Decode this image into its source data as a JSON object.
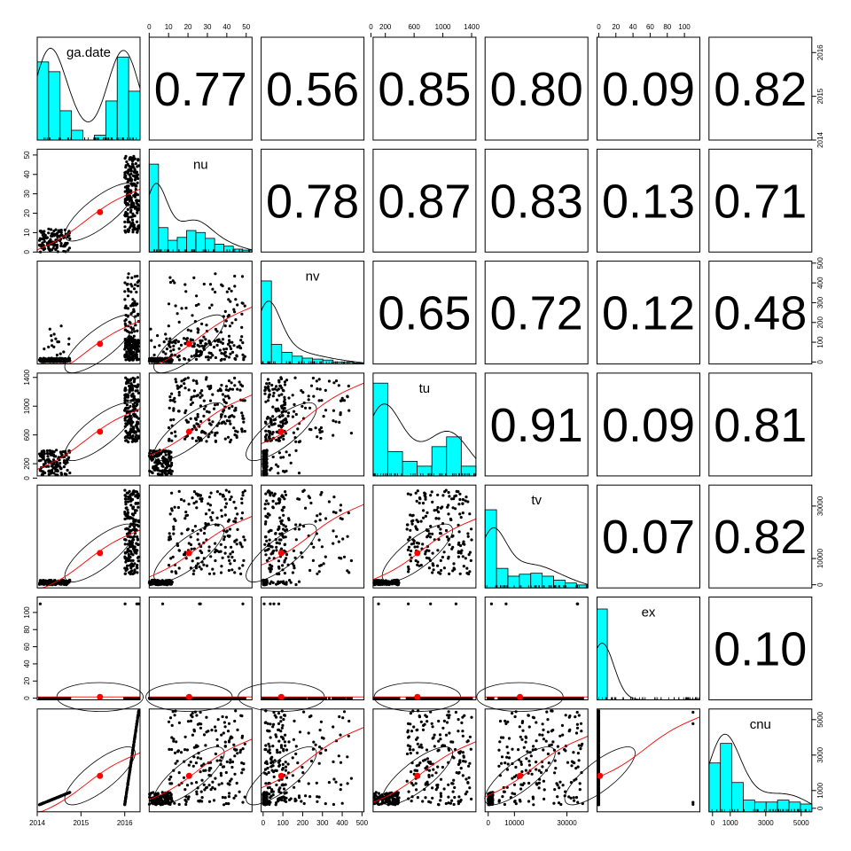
{
  "chart_data": {
    "type": "scatter",
    "variables": [
      "ga.date",
      "nu",
      "nv",
      "tu",
      "tv",
      "ex",
      "cnu"
    ],
    "correlations": [
      {
        "row": 0,
        "col": 1,
        "text": "0.77"
      },
      {
        "row": 0,
        "col": 2,
        "text": "0.56"
      },
      {
        "row": 0,
        "col": 3,
        "text": "0.85"
      },
      {
        "row": 0,
        "col": 4,
        "text": "0.80"
      },
      {
        "row": 0,
        "col": 5,
        "text": "0.09"
      },
      {
        "row": 0,
        "col": 6,
        "text": "0.82"
      },
      {
        "row": 1,
        "col": 2,
        "text": "0.78"
      },
      {
        "row": 1,
        "col": 3,
        "text": "0.87"
      },
      {
        "row": 1,
        "col": 4,
        "text": "0.83"
      },
      {
        "row": 1,
        "col": 5,
        "text": "0.13"
      },
      {
        "row": 1,
        "col": 6,
        "text": "0.71"
      },
      {
        "row": 2,
        "col": 3,
        "text": "0.65"
      },
      {
        "row": 2,
        "col": 4,
        "text": "0.72"
      },
      {
        "row": 2,
        "col": 5,
        "text": "0.12"
      },
      {
        "row": 2,
        "col": 6,
        "text": "0.48"
      },
      {
        "row": 3,
        "col": 4,
        "text": "0.91"
      },
      {
        "row": 3,
        "col": 5,
        "text": "0.09"
      },
      {
        "row": 3,
        "col": 6,
        "text": "0.81"
      },
      {
        "row": 4,
        "col": 5,
        "text": "0.07"
      },
      {
        "row": 4,
        "col": 6,
        "text": "0.82"
      },
      {
        "row": 5,
        "col": 6,
        "text": "0.10"
      }
    ],
    "ranges": {
      "ga.date": [
        2014.0,
        2016.35
      ],
      "nu": [
        0,
        53
      ],
      "nv": [
        -10,
        510
      ],
      "tu": [
        30,
        1460
      ],
      "tv": [
        -1200,
        38000
      ],
      "ex": [
        -2,
        118
      ],
      "cnu": [
        -200,
        5600
      ]
    },
    "axes": {
      "top": [
        {
          "col": 1,
          "ticks": [
            0,
            10,
            20,
            30,
            40,
            50
          ]
        },
        {
          "col": 3,
          "ticks": [
            0,
            200,
            600,
            1000,
            1400
          ],
          "extra_labels": [
            200
          ]
        },
        {
          "col": 5,
          "ticks": [
            0,
            20,
            40,
            60,
            80,
            100
          ]
        }
      ],
      "bottom": [
        {
          "col": 0,
          "ticks": [
            2014,
            2015,
            2016
          ]
        },
        {
          "col": 2,
          "ticks": [
            0,
            100,
            200,
            300,
            400,
            500
          ]
        },
        {
          "col": 4,
          "ticks": [
            0,
            10000,
            30000
          ]
        },
        {
          "col": 6,
          "ticks": [
            0,
            1000,
            3000,
            5000
          ]
        }
      ],
      "left": [
        {
          "row": 1,
          "ticks": [
            0,
            10,
            20,
            30,
            40,
            50
          ]
        },
        {
          "row": 3,
          "ticks": [
            0,
            200,
            600,
            1000,
            1400
          ]
        },
        {
          "row": 5,
          "ticks": [
            0,
            20,
            40,
            60,
            80,
            100
          ]
        }
      ],
      "right": [
        {
          "row": 0,
          "ticks": [
            2014,
            2015,
            2016
          ]
        },
        {
          "row": 2,
          "ticks": [
            0,
            100,
            200,
            300,
            400,
            500
          ]
        },
        {
          "row": 4,
          "ticks": [
            0,
            10000,
            30000
          ]
        },
        {
          "row": 6,
          "ticks": [
            0,
            1000,
            3000,
            5000
          ]
        }
      ]
    },
    "histograms": {
      "ga.date": [
        0.8,
        0.7,
        0.3,
        0.1,
        0,
        0.05,
        0.4,
        0.85,
        0.5
      ],
      "nu": [
        0.9,
        0.25,
        0.12,
        0.15,
        0.22,
        0.2,
        0.14,
        0.08,
        0.06,
        0.03,
        0.02
      ],
      "nv": [
        0.85,
        0.2,
        0.12,
        0.08,
        0.06,
        0.05,
        0.04,
        0.02,
        0.02,
        0.01
      ],
      "tu": [
        0.95,
        0.25,
        0.15,
        0.1,
        0.3,
        0.4,
        0.1
      ],
      "tv": [
        0.8,
        0.2,
        0.12,
        0.14,
        0.15,
        0.12,
        0.08,
        0.05,
        0.03
      ],
      "ex": [
        0.93,
        0,
        0,
        0,
        0,
        0,
        0,
        0,
        0,
        0.005
      ],
      "cnu": [
        0.5,
        0.7,
        0.3,
        0.12,
        0.1,
        0.1,
        0.12,
        0.1,
        0.08
      ]
    },
    "colors": {
      "histogram_fill": "#00ffff",
      "smooth_line": "#ff0000",
      "center_point": "#ff0000",
      "points": "#000000"
    },
    "title": "",
    "grid": false,
    "legend": "none"
  }
}
